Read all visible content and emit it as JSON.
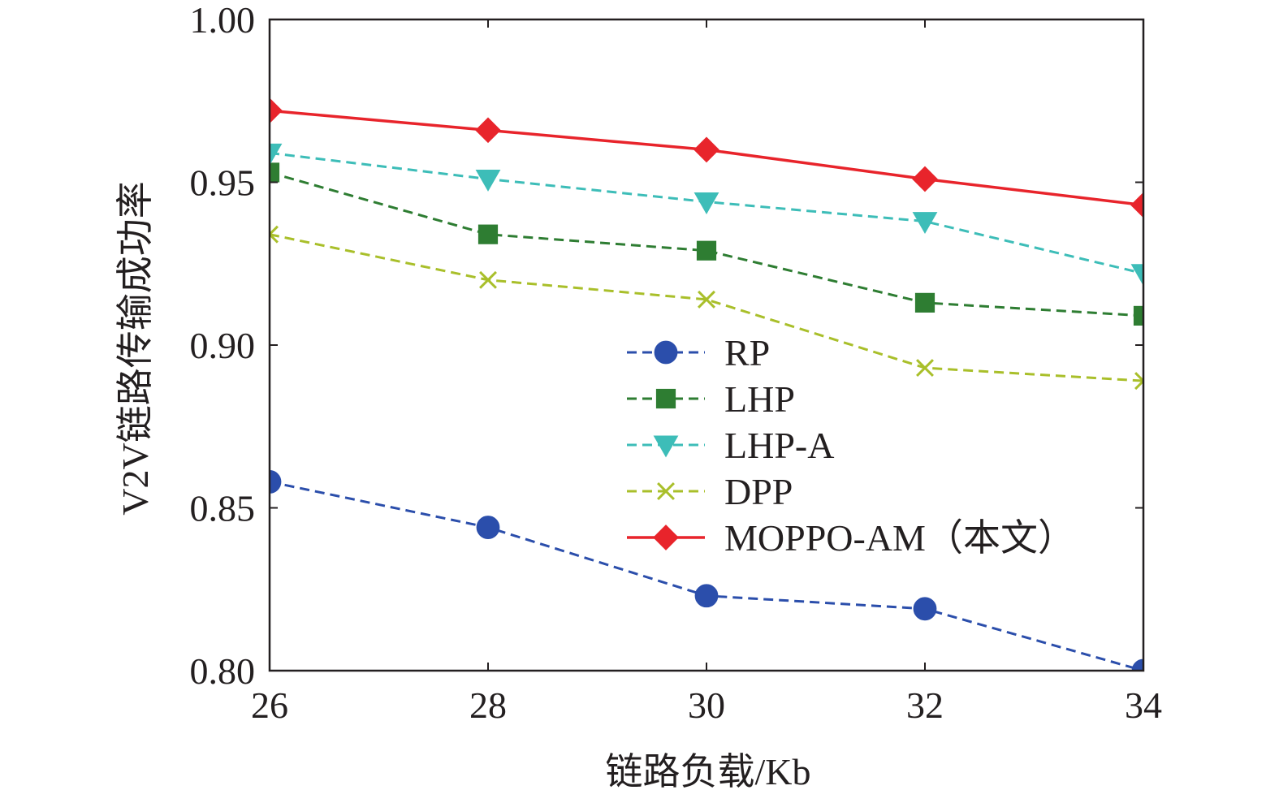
{
  "chart_data": {
    "type": "line",
    "xlabel": "链路负载/Kb",
    "ylabel": "V2V链路传输成功率",
    "xlim": [
      26,
      34
    ],
    "ylim": [
      0.8,
      1.0
    ],
    "x_ticks": [
      "26",
      "28",
      "30",
      "32",
      "34"
    ],
    "y_ticks": [
      "0.80",
      "0.85",
      "0.90",
      "0.95",
      "1.00"
    ],
    "grid": false,
    "legend_position": "center-right",
    "x": [
      26,
      28,
      30,
      32,
      34
    ],
    "series": [
      {
        "name": "RP",
        "values": [
          0.858,
          0.844,
          0.823,
          0.819,
          0.8
        ],
        "color": "#2b4eab",
        "marker": "circle",
        "dash": "dashed"
      },
      {
        "name": "LHP",
        "values": [
          0.953,
          0.934,
          0.929,
          0.913,
          0.909
        ],
        "color": "#2e7d32",
        "marker": "square",
        "dash": "dashed"
      },
      {
        "name": "LHP-A",
        "values": [
          0.959,
          0.951,
          0.944,
          0.938,
          0.922
        ],
        "color": "#3dbdb8",
        "marker": "triangle-down",
        "dash": "dashed"
      },
      {
        "name": "DPP",
        "values": [
          0.934,
          0.92,
          0.914,
          0.893,
          0.889
        ],
        "color": "#a9bf2a",
        "marker": "x",
        "dash": "dashed"
      },
      {
        "name": "MOPPO-AM（本文）",
        "values": [
          0.972,
          0.966,
          0.96,
          0.951,
          0.943
        ],
        "color": "#e8242b",
        "marker": "diamond",
        "dash": "solid"
      }
    ]
  }
}
